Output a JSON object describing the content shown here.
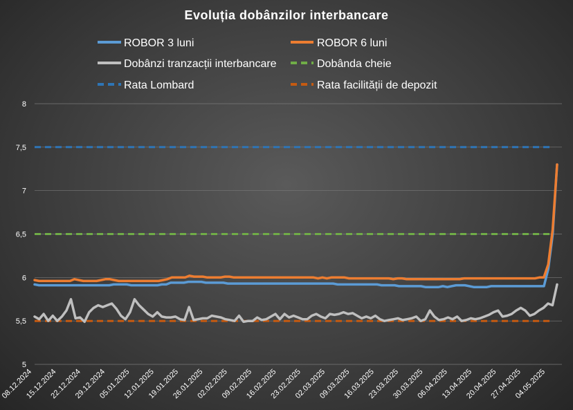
{
  "chart_data": {
    "type": "line",
    "title": "Evoluția  dobânzilor  interbancare",
    "ylim": [
      5,
      8
    ],
    "y_ticks": [
      "5",
      "5,5",
      "6",
      "6,5",
      "7",
      "7,5",
      "8"
    ],
    "grid": "horizontal",
    "legend_position": "top",
    "x_labels": [
      "08.12.2024",
      "15.12.2024",
      "22.12.2024",
      "29.12.2024",
      "05.01.2025",
      "12.01.2025",
      "19.01.2025",
      "26.01.2025",
      "02.02.2025",
      "09.02.2025",
      "16.02.2025",
      "23.02.2025",
      "02.03.2025",
      "09.03.2025",
      "16.03.2025",
      "23.03.2025",
      "30.03.2025",
      "06.04.2025",
      "13.04.2025",
      "20.04.2025",
      "27.04.2025",
      "04.05.2025"
    ],
    "series": [
      {
        "name": "ROBOR 3 luni",
        "color": "#5b9bd5",
        "dash": false,
        "values": [
          5.92,
          5.91,
          5.91,
          5.91,
          5.91,
          5.91,
          5.91,
          5.91,
          5.91,
          5.91,
          5.91,
          5.91,
          5.91,
          5.91,
          5.91,
          5.91,
          5.91,
          5.91,
          5.92,
          5.92,
          5.92,
          5.92,
          5.91,
          5.91,
          5.91,
          5.91,
          5.91,
          5.91,
          5.91,
          5.92,
          5.92,
          5.94,
          5.94,
          5.94,
          5.94,
          5.95,
          5.95,
          5.95,
          5.95,
          5.94,
          5.94,
          5.94,
          5.94,
          5.94,
          5.93,
          5.93,
          5.93,
          5.93,
          5.93,
          5.93,
          5.93,
          5.93,
          5.93,
          5.93,
          5.93,
          5.93,
          5.93,
          5.93,
          5.93,
          5.93,
          5.93,
          5.93,
          5.93,
          5.93,
          5.93,
          5.93,
          5.93,
          5.93,
          5.93,
          5.92,
          5.92,
          5.92,
          5.92,
          5.92,
          5.92,
          5.92,
          5.92,
          5.92,
          5.92,
          5.91,
          5.91,
          5.91,
          5.91,
          5.9,
          5.9,
          5.9,
          5.9,
          5.9,
          5.9,
          5.89,
          5.89,
          5.89,
          5.89,
          5.9,
          5.89,
          5.9,
          5.91,
          5.91,
          5.91,
          5.9,
          5.89,
          5.89,
          5.89,
          5.89,
          5.9,
          5.9,
          5.9,
          5.9,
          5.9,
          5.9,
          5.9,
          5.9,
          5.9,
          5.9,
          5.9,
          5.9,
          5.9,
          6.1,
          6.5,
          7.3
        ]
      },
      {
        "name": "ROBOR 6 luni",
        "color": "#ed7d31",
        "dash": false,
        "values": [
          5.97,
          5.96,
          5.96,
          5.96,
          5.96,
          5.96,
          5.96,
          5.96,
          5.96,
          5.98,
          5.97,
          5.96,
          5.96,
          5.96,
          5.96,
          5.97,
          5.98,
          5.98,
          5.97,
          5.96,
          5.96,
          5.96,
          5.96,
          5.96,
          5.96,
          5.96,
          5.96,
          5.96,
          5.96,
          5.97,
          5.98,
          6.0,
          6.0,
          6.0,
          6.0,
          6.02,
          6.01,
          6.01,
          6.01,
          6.0,
          6.0,
          6.0,
          6.0,
          6.01,
          6.01,
          6.0,
          6.0,
          6.0,
          6.0,
          6.0,
          6.0,
          6.0,
          6.0,
          6.0,
          6.0,
          6.0,
          6.0,
          6.0,
          6.0,
          6.0,
          6.0,
          6.0,
          6.0,
          6.0,
          5.99,
          6.0,
          5.99,
          6.0,
          6.0,
          6.0,
          6.0,
          5.99,
          5.99,
          5.99,
          5.99,
          5.99,
          5.99,
          5.99,
          5.99,
          5.99,
          5.99,
          5.98,
          5.99,
          5.99,
          5.98,
          5.98,
          5.98,
          5.98,
          5.98,
          5.98,
          5.98,
          5.98,
          5.98,
          5.98,
          5.98,
          5.98,
          5.98,
          5.99,
          5.99,
          5.99,
          5.99,
          5.99,
          5.99,
          5.99,
          5.99,
          5.99,
          5.99,
          5.99,
          5.99,
          5.99,
          5.99,
          5.99,
          5.99,
          5.99,
          6.0,
          6.0,
          6.15,
          6.55,
          7.3
        ]
      },
      {
        "name": "Dobânzi tranzacții interbancare",
        "color": "#bfbfbf",
        "dash": false,
        "values": [
          5.55,
          5.52,
          5.58,
          5.5,
          5.56,
          5.5,
          5.55,
          5.62,
          5.75,
          5.53,
          5.54,
          5.49,
          5.6,
          5.65,
          5.68,
          5.66,
          5.68,
          5.7,
          5.64,
          5.56,
          5.52,
          5.6,
          5.75,
          5.68,
          5.63,
          5.58,
          5.55,
          5.6,
          5.55,
          5.54,
          5.54,
          5.55,
          5.52,
          5.51,
          5.66,
          5.51,
          5.52,
          5.53,
          5.53,
          5.56,
          5.55,
          5.54,
          5.52,
          5.51,
          5.5,
          5.56,
          5.49,
          5.5,
          5.5,
          5.54,
          5.51,
          5.52,
          5.55,
          5.58,
          5.52,
          5.58,
          5.54,
          5.56,
          5.54,
          5.52,
          5.52,
          5.56,
          5.58,
          5.55,
          5.53,
          5.58,
          5.57,
          5.58,
          5.6,
          5.58,
          5.59,
          5.56,
          5.53,
          5.55,
          5.53,
          5.56,
          5.52,
          5.5,
          5.51,
          5.52,
          5.53,
          5.51,
          5.52,
          5.53,
          5.55,
          5.5,
          5.52,
          5.62,
          5.55,
          5.51,
          5.52,
          5.54,
          5.52,
          5.55,
          5.5,
          5.51,
          5.53,
          5.52,
          5.53,
          5.55,
          5.57,
          5.6,
          5.62,
          5.55,
          5.56,
          5.58,
          5.62,
          5.65,
          5.62,
          5.56,
          5.58,
          5.62,
          5.65,
          5.7,
          5.68,
          5.92
        ]
      },
      {
        "name": "Dobânda cheie",
        "color": "#70ad47",
        "dash": true,
        "values": [
          6.5,
          6.5
        ]
      },
      {
        "name": "Rata Lombard",
        "color": "#2e75b6",
        "dash": true,
        "values": [
          7.5,
          7.5
        ]
      },
      {
        "name": "Rata facilității de depozit",
        "color": "#c55a11",
        "dash": true,
        "values": [
          5.5,
          5.5
        ]
      }
    ]
  }
}
